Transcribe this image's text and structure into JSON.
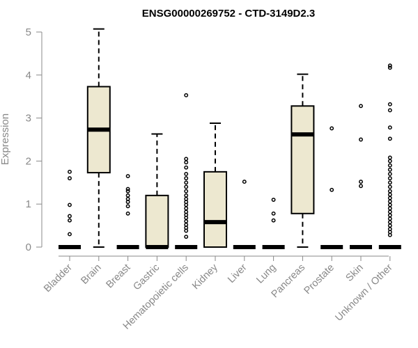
{
  "chart_data": {
    "type": "boxplot",
    "title": "ENSG00000269752 - CTD-3149D2.3",
    "ylabel": "Expression",
    "xlabel": "",
    "ylim": [
      0,
      5.2
    ],
    "yticks": [
      0,
      1,
      2,
      3,
      4,
      5
    ],
    "box_fill": "#EDE8D0",
    "grid": false,
    "categories": [
      "Bladder",
      "Brain",
      "Breast",
      "Gastric",
      "Hematopoietic cells",
      "Kidney",
      "Liver",
      "Lung",
      "Pancreas",
      "Prostate",
      "Skin",
      "Unknown / Other"
    ],
    "boxes": [
      {
        "min": 0,
        "q1": 0,
        "median": 0,
        "q3": 0,
        "max": 0,
        "outliers": [
          0.3,
          0.62,
          0.72,
          0.98,
          1.6,
          1.75
        ]
      },
      {
        "min": 0,
        "q1": 1.73,
        "median": 2.73,
        "q3": 3.73,
        "max": 5.07,
        "outliers": []
      },
      {
        "min": 0,
        "q1": 0,
        "median": 0,
        "q3": 0,
        "max": 0,
        "outliers": [
          0.78,
          0.95,
          1.05,
          1.12,
          1.2,
          1.3,
          1.35,
          1.65
        ]
      },
      {
        "min": 0,
        "q1": 0,
        "median": 0,
        "q3": 1.2,
        "max": 2.63,
        "outliers": []
      },
      {
        "min": 0,
        "q1": 0,
        "median": 0,
        "q3": 0,
        "max": 0,
        "outliers": [
          0.24,
          0.38,
          0.45,
          0.52,
          0.6,
          0.68,
          0.75,
          0.82,
          0.9,
          0.98,
          1.05,
          1.12,
          1.2,
          1.3,
          1.4,
          1.5,
          1.6,
          1.7,
          1.85,
          1.97,
          2.05,
          3.53
        ]
      },
      {
        "min": 0,
        "q1": 0,
        "median": 0.58,
        "q3": 1.75,
        "max": 2.88,
        "outliers": []
      },
      {
        "min": 0,
        "q1": 0,
        "median": 0,
        "q3": 0,
        "max": 0,
        "outliers": [
          1.52
        ]
      },
      {
        "min": 0,
        "q1": 0,
        "median": 0,
        "q3": 0,
        "max": 0,
        "outliers": [
          0.62,
          0.78,
          1.1
        ]
      },
      {
        "min": 0,
        "q1": 0.78,
        "median": 2.62,
        "q3": 3.28,
        "max": 4.02,
        "outliers": []
      },
      {
        "min": 0,
        "q1": 0,
        "median": 0,
        "q3": 0,
        "max": 0,
        "outliers": [
          1.33,
          2.76
        ]
      },
      {
        "min": 0,
        "q1": 0,
        "median": 0,
        "q3": 0,
        "max": 0,
        "outliers": [
          1.42,
          1.52,
          2.5,
          3.28
        ]
      },
      {
        "min": 0,
        "q1": 0,
        "median": 0,
        "q3": 0,
        "max": 0,
        "outliers": [
          0.28,
          0.35,
          0.42,
          0.5,
          0.58,
          0.66,
          0.74,
          0.82,
          0.9,
          0.98,
          1.06,
          1.14,
          1.22,
          1.3,
          1.4,
          1.5,
          1.6,
          1.7,
          1.8,
          1.9,
          2.0,
          2.08,
          2.52,
          2.78,
          3.18,
          3.32,
          4.17,
          4.22
        ]
      }
    ]
  }
}
